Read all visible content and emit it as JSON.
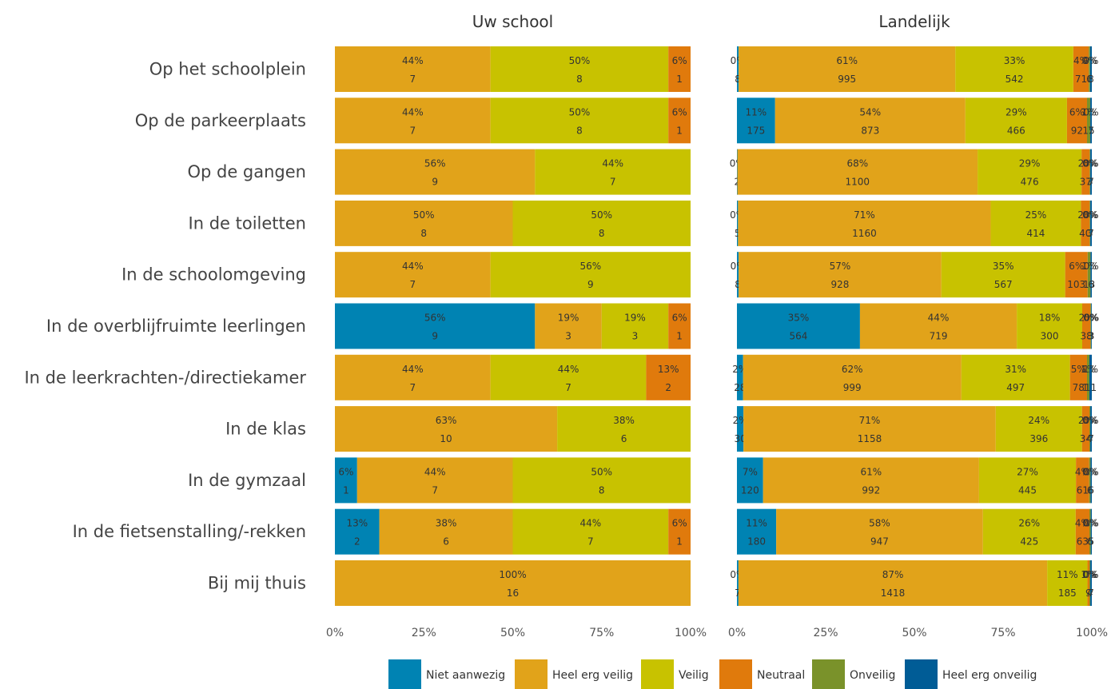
{
  "chart_data": {
    "type": "bar",
    "orientation": "horizontal",
    "stacked": "percent",
    "xlim": [
      0,
      100
    ],
    "x_ticks": [
      "0%",
      "25%",
      "50%",
      "75%",
      "100%"
    ],
    "categories": [
      "Op het schoolplein",
      "Op de parkeerplaats",
      "Op de gangen",
      "In de toiletten",
      "In de schoolomgeving",
      "In de overblijfruimte leerlingen",
      "In de leerkrachten-/directiekamer",
      "In de klas",
      "In de gymzaal",
      "In de fietsenstalling/-rekken",
      "Bij mij thuis"
    ],
    "legend": {
      "position": "bottom",
      "items": [
        {
          "label": "Niet aanwezig",
          "color": "#0083b3"
        },
        {
          "label": "Heel erg veilig",
          "color": "#e1a31a"
        },
        {
          "label": "Veilig",
          "color": "#c8c200"
        },
        {
          "label": "Neutraal",
          "color": "#e07a0c"
        },
        {
          "label": "Onveilig",
          "color": "#7a922a"
        },
        {
          "label": "Heel erg onveilig",
          "color": "#005c96"
        }
      ]
    },
    "panels": [
      {
        "title": "Uw school",
        "rows": [
          [
            0,
            7,
            8,
            1,
            0,
            0
          ],
          [
            0,
            7,
            8,
            1,
            0,
            0
          ],
          [
            0,
            9,
            7,
            0,
            0,
            0
          ],
          [
            0,
            8,
            8,
            0,
            0,
            0
          ],
          [
            0,
            7,
            9,
            0,
            0,
            0
          ],
          [
            9,
            3,
            3,
            1,
            0,
            0
          ],
          [
            0,
            7,
            7,
            2,
            0,
            0
          ],
          [
            0,
            10,
            6,
            0,
            0,
            0
          ],
          [
            1,
            7,
            8,
            0,
            0,
            0
          ],
          [
            2,
            6,
            7,
            1,
            0,
            0
          ],
          [
            0,
            16,
            0,
            0,
            0,
            0
          ]
        ]
      },
      {
        "title": "Landelijk",
        "rows": [
          [
            8,
            995,
            542,
            71,
            6,
            8
          ],
          [
            175,
            873,
            466,
            92,
            15,
            7
          ],
          [
            2,
            1100,
            476,
            37,
            3,
            7
          ],
          [
            5,
            1160,
            414,
            40,
            3,
            7
          ],
          [
            8,
            928,
            567,
            103,
            13,
            6
          ],
          [
            564,
            719,
            300,
            38,
            3,
            3
          ],
          [
            28,
            999,
            497,
            78,
            11,
            11
          ],
          [
            30,
            1158,
            396,
            34,
            4,
            7
          ],
          [
            120,
            992,
            445,
            61,
            6,
            6
          ],
          [
            180,
            947,
            425,
            63,
            6,
            5
          ],
          [
            7,
            1418,
            185,
            9,
            4,
            7
          ]
        ]
      }
    ]
  }
}
